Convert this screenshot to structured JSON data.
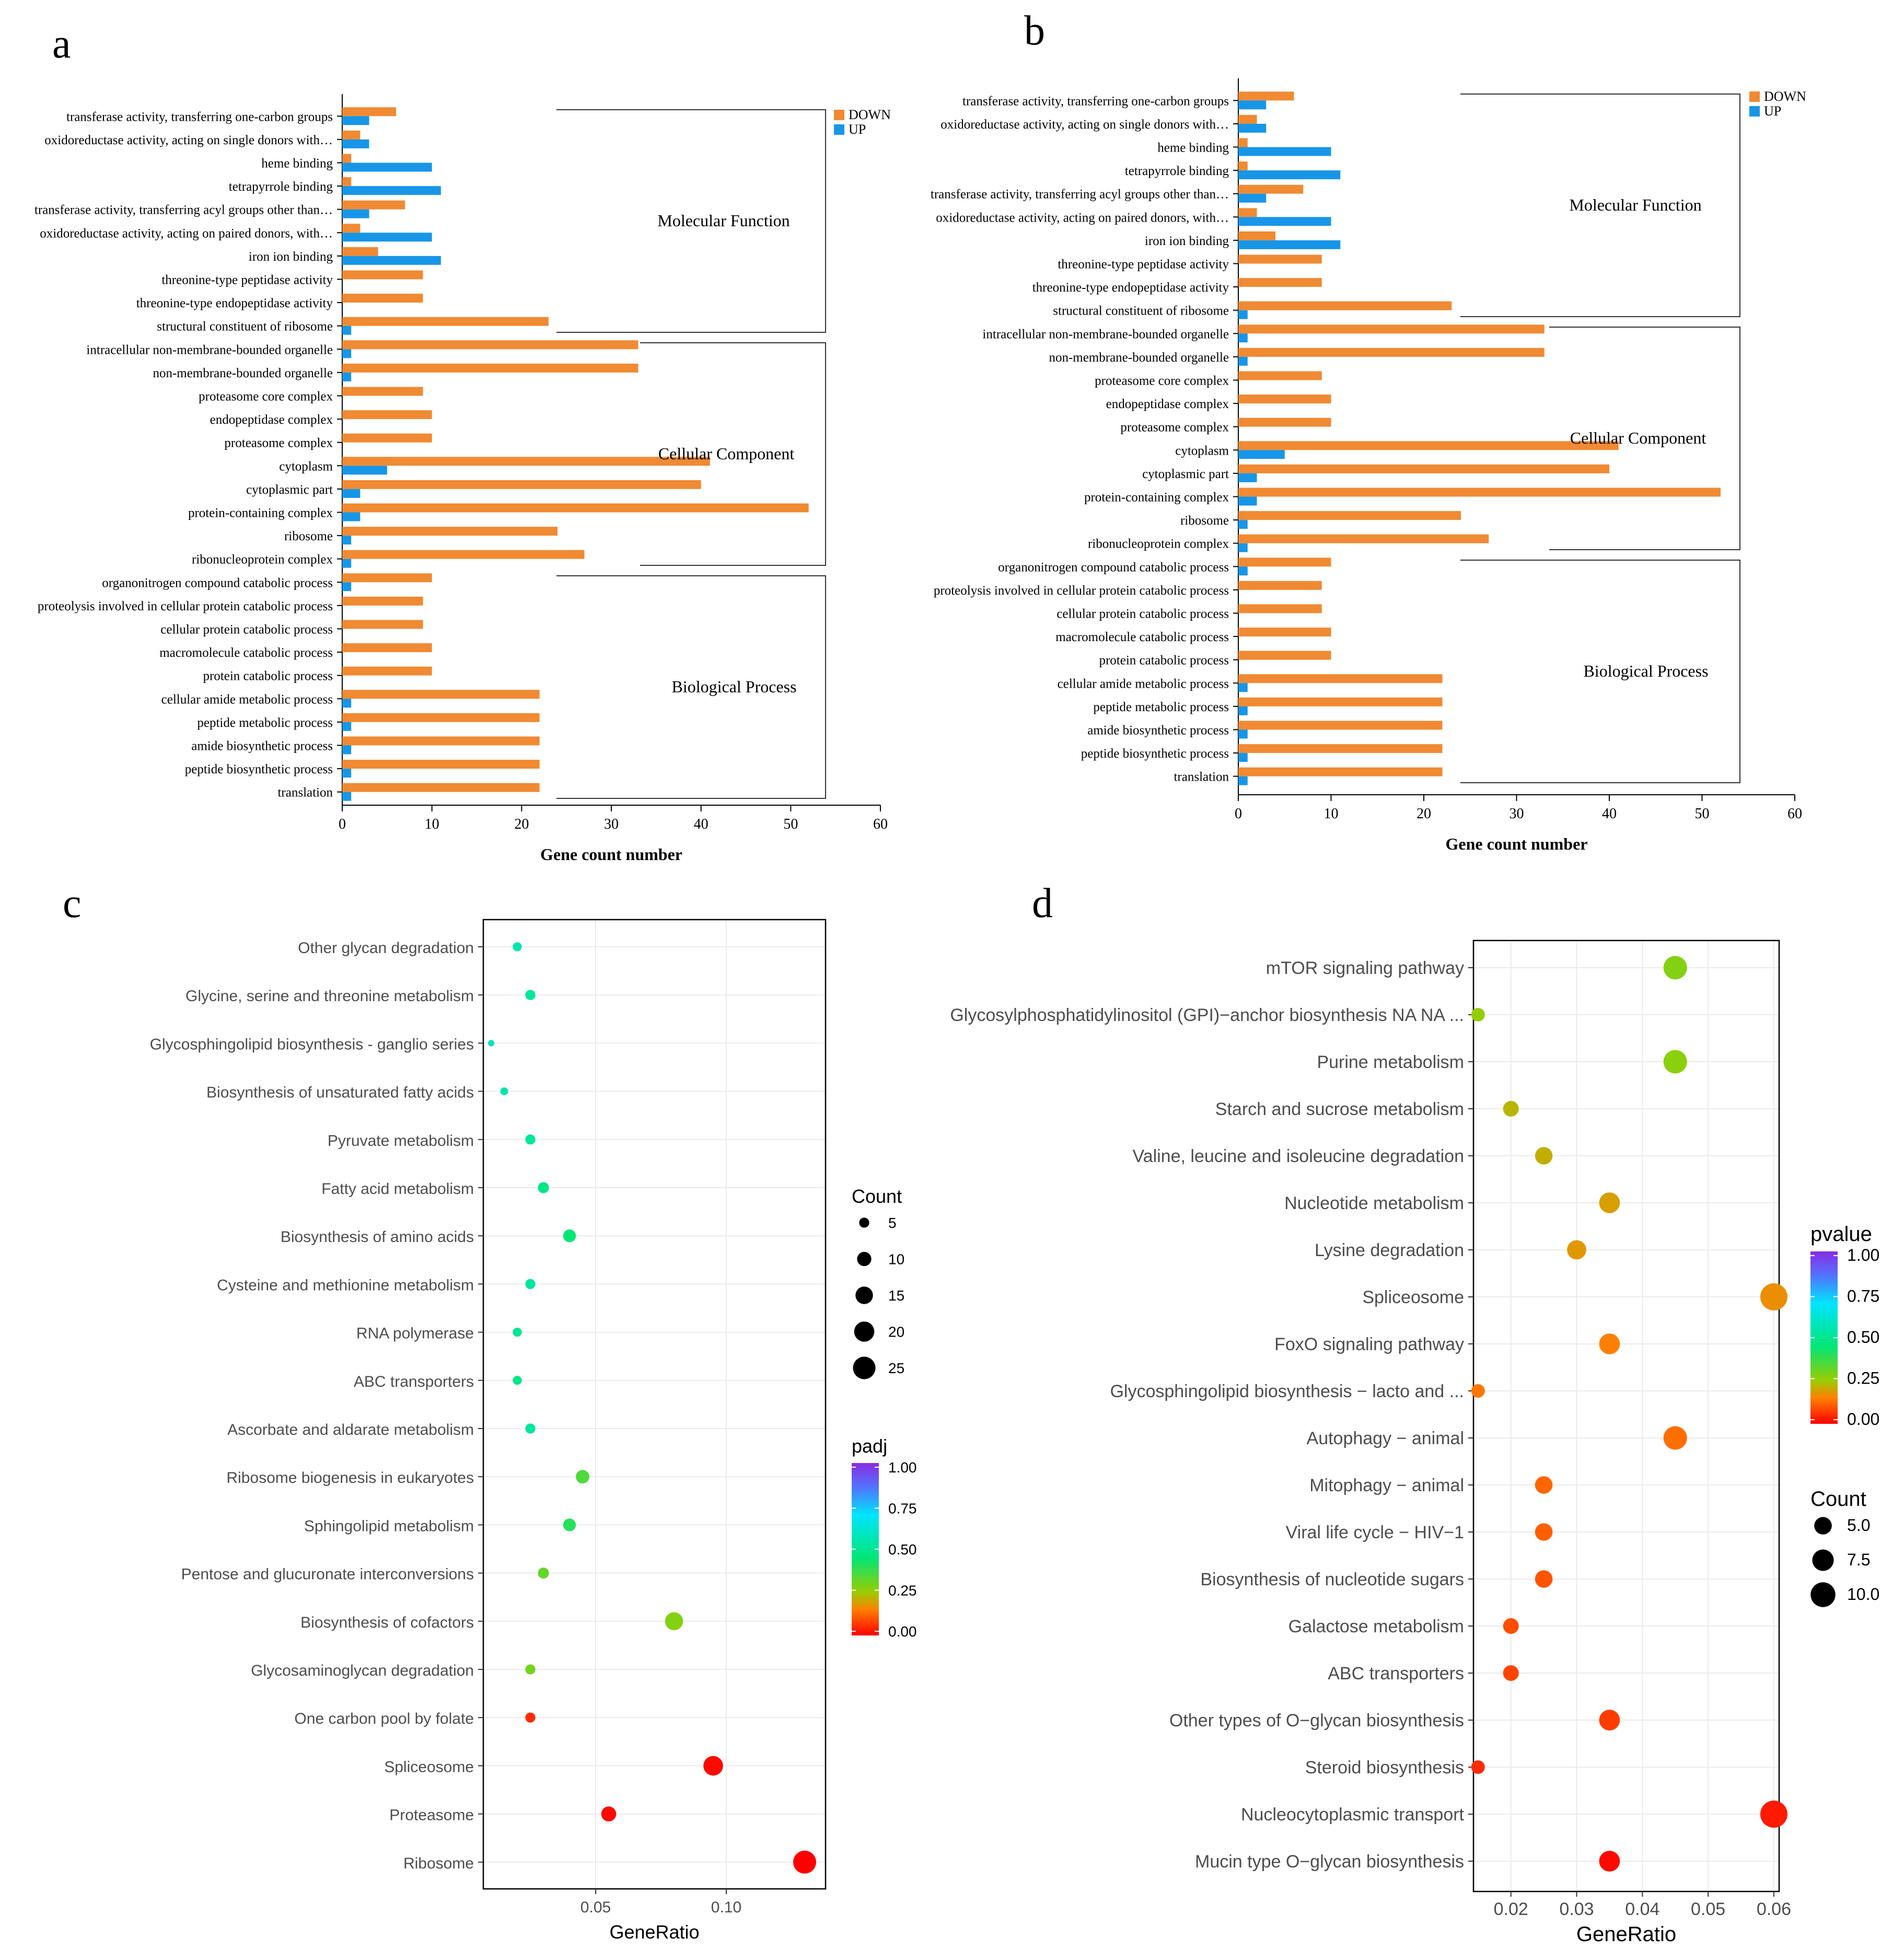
{
  "panels": {
    "a": "a",
    "b": "b",
    "c": "c",
    "d": "d"
  },
  "colors": {
    "down": "#f08a33",
    "up": "#1796e8",
    "axis": "#000000",
    "grid": "#ebebeb"
  },
  "chart_data": [
    {
      "id": "a",
      "type": "bar",
      "orientation": "horizontal",
      "xlabel": "Gene count number",
      "xlim": [
        0,
        60
      ],
      "xticks": [
        0,
        10,
        20,
        30,
        40,
        50,
        60
      ],
      "legend": [
        "DOWN",
        "UP"
      ],
      "groups": [
        {
          "name": "Molecular Function",
          "start": 0,
          "end": 9
        },
        {
          "name": "Cellular Component",
          "start": 10,
          "end": 19
        },
        {
          "name": "Biological Process",
          "start": 20,
          "end": 29
        }
      ],
      "categories": [
        "transferase activity, transferring one-carbon groups",
        "oxidoreductase activity, acting on single donors with…",
        "heme binding",
        "tetrapyrrole binding",
        "transferase activity, transferring acyl groups other than…",
        "oxidoreductase activity, acting on paired donors, with…",
        "iron ion binding",
        "threonine-type peptidase activity",
        "threonine-type endopeptidase activity",
        "structural constituent of ribosome",
        "intracellular non-membrane-bounded organelle",
        "non-membrane-bounded organelle",
        "proteasome core complex",
        "endopeptidase complex",
        "proteasome complex",
        "cytoplasm",
        "cytoplasmic part",
        "protein-containing complex",
        "ribosome",
        "ribonucleoprotein complex",
        "organonitrogen compound catabolic process",
        "proteolysis involved in cellular protein catabolic process",
        "cellular protein catabolic process",
        "macromolecule catabolic process",
        "protein catabolic process",
        "cellular amide metabolic process",
        "peptide metabolic process",
        "amide biosynthetic process",
        "peptide biosynthetic process",
        "translation"
      ],
      "series": [
        {
          "name": "DOWN",
          "values": [
            6,
            2,
            1,
            1,
            7,
            2,
            4,
            9,
            9,
            23,
            33,
            33,
            9,
            10,
            10,
            41,
            40,
            52,
            24,
            27,
            10,
            9,
            9,
            10,
            10,
            22,
            22,
            22,
            22,
            22
          ]
        },
        {
          "name": "UP",
          "values": [
            3,
            3,
            10,
            11,
            3,
            10,
            11,
            0,
            0,
            1,
            1,
            1,
            0,
            0,
            0,
            5,
            2,
            2,
            1,
            1,
            1,
            0,
            0,
            0,
            0,
            1,
            1,
            1,
            1,
            1
          ]
        }
      ]
    },
    {
      "id": "b",
      "type": "bar",
      "orientation": "horizontal",
      "xlabel": "Gene count number",
      "xlim": [
        0,
        60
      ],
      "xticks": [
        0,
        10,
        20,
        30,
        40,
        50,
        60
      ],
      "legend": [
        "DOWN",
        "UP"
      ],
      "groups": [
        {
          "name": "Molecular Function",
          "start": 0,
          "end": 9
        },
        {
          "name": "Cellular Component",
          "start": 10,
          "end": 19
        },
        {
          "name": "Biological Process",
          "start": 20,
          "end": 29
        }
      ],
      "categories": [
        "transferase activity, transferring one-carbon groups",
        "oxidoreductase activity, acting on single donors with…",
        "heme binding",
        "tetrapyrrole binding",
        "transferase activity, transferring acyl groups other than…",
        "oxidoreductase activity, acting on paired donors, with…",
        "iron ion binding",
        "threonine-type peptidase activity",
        "threonine-type endopeptidase activity",
        "structural constituent of ribosome",
        "intracellular non-membrane-bounded organelle",
        "non-membrane-bounded organelle",
        "proteasome core complex",
        "endopeptidase complex",
        "proteasome complex",
        "cytoplasm",
        "cytoplasmic part",
        "protein-containing complex",
        "ribosome",
        "ribonucleoprotein complex",
        "organonitrogen compound catabolic process",
        "proteolysis involved in cellular protein catabolic process",
        "cellular protein catabolic process",
        "macromolecule catabolic process",
        "protein catabolic process",
        "cellular amide metabolic process",
        "peptide metabolic process",
        "amide biosynthetic process",
        "peptide biosynthetic process",
        "translation"
      ],
      "series": [
        {
          "name": "DOWN",
          "values": [
            6,
            2,
            1,
            1,
            7,
            2,
            4,
            9,
            9,
            23,
            33,
            33,
            9,
            10,
            10,
            41,
            40,
            52,
            24,
            27,
            10,
            9,
            9,
            10,
            10,
            22,
            22,
            22,
            22,
            22
          ]
        },
        {
          "name": "UP",
          "values": [
            3,
            3,
            10,
            11,
            3,
            10,
            11,
            0,
            0,
            1,
            1,
            1,
            0,
            0,
            0,
            5,
            2,
            2,
            1,
            1,
            1,
            0,
            0,
            0,
            0,
            1,
            1,
            1,
            1,
            1
          ]
        }
      ]
    },
    {
      "id": "c",
      "type": "scatter",
      "xlabel": "GeneRatio",
      "xlim": [
        0.007,
        0.138
      ],
      "xticks": [
        0.05,
        0.1
      ],
      "xticklabels": [
        "0.05",
        "0.10"
      ],
      "color_legend": {
        "title": "padj",
        "ticks": [
          "1.00",
          "0.75",
          "0.50",
          "0.25",
          "0.00"
        ]
      },
      "size_legend": {
        "title": "Count",
        "ticks": [
          "5",
          "10",
          "15",
          "20",
          "25"
        ]
      },
      "categories": [
        "Other glycan degradation",
        "Glycine, serine and threonine metabolism",
        "Glycosphingolipid biosynthesis - ganglio series",
        "Biosynthesis of unsaturated fatty acids",
        "Pyruvate metabolism",
        "Fatty acid metabolism",
        "Biosynthesis of amino acids",
        "Cysteine and methionine metabolism",
        "RNA polymerase",
        "ABC transporters",
        "Ascorbate and aldarate metabolism",
        "Ribosome biogenesis in eukaryotes",
        "Sphingolipid metabolism",
        "Pentose and glucuronate interconversions",
        "Biosynthesis of cofactors",
        "Glycosaminoglycan degradation",
        "One carbon pool by folate",
        "Spliceosome",
        "Proteasome",
        "Ribosome"
      ],
      "x": [
        0.02,
        0.025,
        0.01,
        0.015,
        0.025,
        0.03,
        0.04,
        0.025,
        0.02,
        0.02,
        0.025,
        0.045,
        0.04,
        0.03,
        0.08,
        0.025,
        0.025,
        0.095,
        0.055,
        0.13
      ],
      "count": [
        4,
        5,
        2,
        3,
        5,
        6,
        8,
        5,
        4,
        4,
        5,
        9,
        8,
        6,
        16,
        5,
        5,
        19,
        11,
        26
      ],
      "padj": [
        0.55,
        0.52,
        0.58,
        0.55,
        0.52,
        0.48,
        0.45,
        0.52,
        0.5,
        0.48,
        0.52,
        0.35,
        0.4,
        0.32,
        0.28,
        0.3,
        0.05,
        0.01,
        0.01,
        0.0
      ]
    },
    {
      "id": "d",
      "type": "scatter",
      "xlabel": "GeneRatio",
      "xlim": [
        0.0143,
        0.0608
      ],
      "xticks": [
        0.02,
        0.03,
        0.04,
        0.05,
        0.06
      ],
      "xticklabels": [
        "0.02",
        "0.03",
        "0.04",
        "0.05",
        "0.06"
      ],
      "color_legend": {
        "title": "pvalue",
        "ticks": [
          "1.00",
          "0.75",
          "0.50",
          "0.25",
          "0.00"
        ]
      },
      "size_legend": {
        "title": "Count",
        "ticks": [
          "5.0",
          "7.5",
          "10.0"
        ]
      },
      "categories": [
        "mTOR signaling pathway",
        "Glycosylphosphatidylinositol (GPI)−anchor biosynthesis NA NA ...",
        "Purine metabolism",
        "Starch and sucrose metabolism",
        "Valine, leucine and isoleucine degradation",
        "Nucleotide metabolism",
        "Lysine degradation",
        "Spliceosome",
        "FoxO signaling pathway",
        "Glycosphingolipid biosynthesis − lacto and ...",
        "Autophagy − animal",
        "Mitophagy − animal",
        "Viral life cycle − HIV−1",
        "Biosynthesis of nucleotide sugars",
        "Galactose metabolism",
        "ABC transporters",
        "Other types of O−glycan biosynthesis",
        "Steroid biosynthesis",
        "Nucleocytoplasmic transport",
        "Mucin type O−glycan biosynthesis"
      ],
      "x": [
        0.045,
        0.015,
        0.045,
        0.02,
        0.025,
        0.035,
        0.03,
        0.06,
        0.035,
        0.015,
        0.045,
        0.025,
        0.025,
        0.025,
        0.02,
        0.02,
        0.035,
        0.015,
        0.06,
        0.035
      ],
      "count": [
        9,
        3,
        9,
        4,
        5,
        7,
        6,
        12,
        7,
        3,
        9,
        5,
        5,
        5,
        4,
        4,
        7,
        3,
        12,
        7
      ],
      "pvalue": [
        0.28,
        0.26,
        0.27,
        0.22,
        0.21,
        0.19,
        0.18,
        0.17,
        0.15,
        0.14,
        0.13,
        0.12,
        0.11,
        0.1,
        0.09,
        0.08,
        0.07,
        0.05,
        0.03,
        0.01
      ]
    }
  ]
}
